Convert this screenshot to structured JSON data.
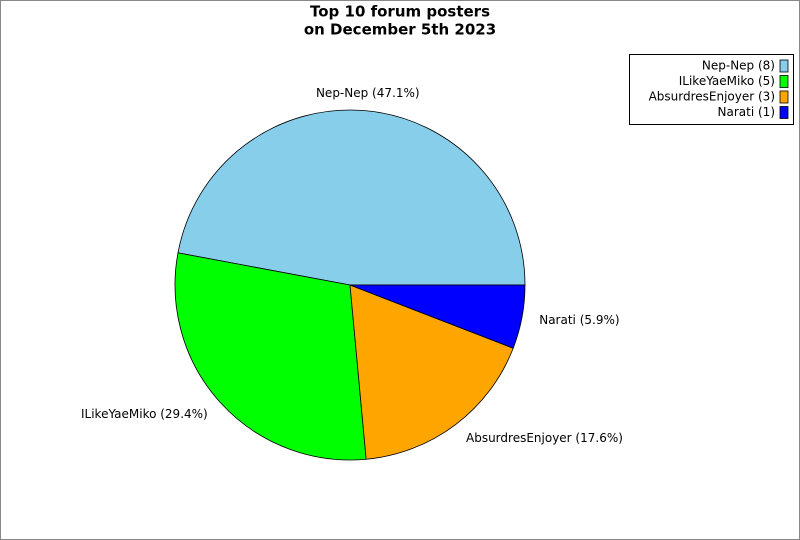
{
  "chart_data": {
    "type": "pie",
    "title": [
      "Top 10 forum posters",
      "on December 5th 2023"
    ],
    "values": [
      8,
      5,
      3,
      1
    ],
    "percents": [
      47.1,
      29.4,
      17.6,
      5.9
    ],
    "slice_labels": [
      "Nep-Nep (47.1%)",
      "ILikeYaeMiko (29.4%)",
      "AbsurdresEnjoyer (17.6%)",
      "Narati (5.9%)"
    ],
    "legend_labels": [
      "Nep-Nep (8)",
      "ILikeYaeMiko (5)",
      "AbsurdresEnjoyer (3)",
      "Narati (1)"
    ],
    "colors": [
      "#87ceeb",
      "#00ff00",
      "#ffa500",
      "#0000ff"
    ],
    "legend": "upper right"
  }
}
